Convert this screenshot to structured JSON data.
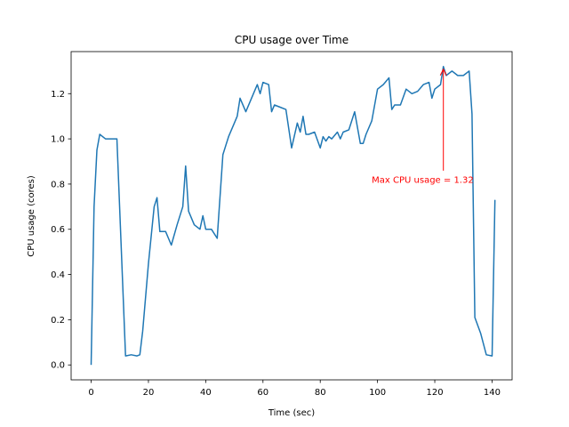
{
  "chart_data": {
    "type": "line",
    "title": "CPU usage over Time",
    "xlabel": "Time (sec)",
    "ylabel": "CPU usage (cores)",
    "xlim": [
      -7,
      147
    ],
    "ylim": [
      -0.066,
      1.386
    ],
    "xticks": [
      0,
      20,
      40,
      60,
      80,
      100,
      120,
      140
    ],
    "yticks": [
      0.0,
      0.2,
      0.4,
      0.6,
      0.8,
      1.0,
      1.2
    ],
    "ytick_labels": [
      "0.0",
      "0.2",
      "0.4",
      "0.6",
      "0.8",
      "1.0",
      "1.2"
    ],
    "grid": false,
    "series": [
      {
        "color": "#1f77b4",
        "x": [
          0,
          1,
          2,
          3,
          5,
          8,
          9,
          12,
          14,
          16,
          17,
          18,
          20,
          22,
          23,
          24,
          26,
          28,
          30,
          32,
          33,
          34,
          36,
          38,
          39,
          40,
          42,
          44,
          46,
          48,
          50,
          51,
          52,
          54,
          56,
          58,
          59,
          60,
          62,
          63,
          64,
          66,
          68,
          70,
          72,
          73,
          74,
          75,
          76,
          78,
          80,
          81,
          82,
          83,
          84,
          86,
          87,
          88,
          90,
          92,
          94,
          95,
          96,
          98,
          100,
          102,
          104,
          105,
          106,
          108,
          110,
          112,
          114,
          116,
          118,
          119,
          120,
          122,
          123,
          124,
          126,
          128,
          130,
          132,
          133,
          134,
          136,
          138,
          140,
          141
        ],
        "y": [
          0.0,
          0.7,
          0.95,
          1.02,
          1.0,
          1.0,
          1.0,
          0.04,
          0.045,
          0.04,
          0.045,
          0.15,
          0.45,
          0.7,
          0.74,
          0.59,
          0.59,
          0.53,
          0.62,
          0.7,
          0.88,
          0.68,
          0.62,
          0.6,
          0.66,
          0.6,
          0.6,
          0.56,
          0.93,
          1.01,
          1.07,
          1.1,
          1.18,
          1.12,
          1.18,
          1.24,
          1.2,
          1.25,
          1.24,
          1.12,
          1.15,
          1.14,
          1.13,
          0.96,
          1.07,
          1.03,
          1.1,
          1.02,
          1.02,
          1.03,
          0.96,
          1.01,
          0.99,
          1.01,
          1.0,
          1.03,
          1.0,
          1.03,
          1.04,
          1.12,
          0.98,
          0.98,
          1.02,
          1.08,
          1.22,
          1.24,
          1.27,
          1.13,
          1.15,
          1.15,
          1.22,
          1.2,
          1.21,
          1.24,
          1.25,
          1.18,
          1.22,
          1.24,
          1.32,
          1.28,
          1.3,
          1.28,
          1.28,
          1.3,
          1.11,
          0.21,
          0.14,
          0.045,
          0.04,
          0.73
        ]
      }
    ],
    "annotation": {
      "text": "Max CPU usage = 1.32",
      "color": "#ff0000",
      "point": [
        123,
        1.32
      ],
      "text_anchor": [
        98,
        0.82
      ]
    }
  }
}
